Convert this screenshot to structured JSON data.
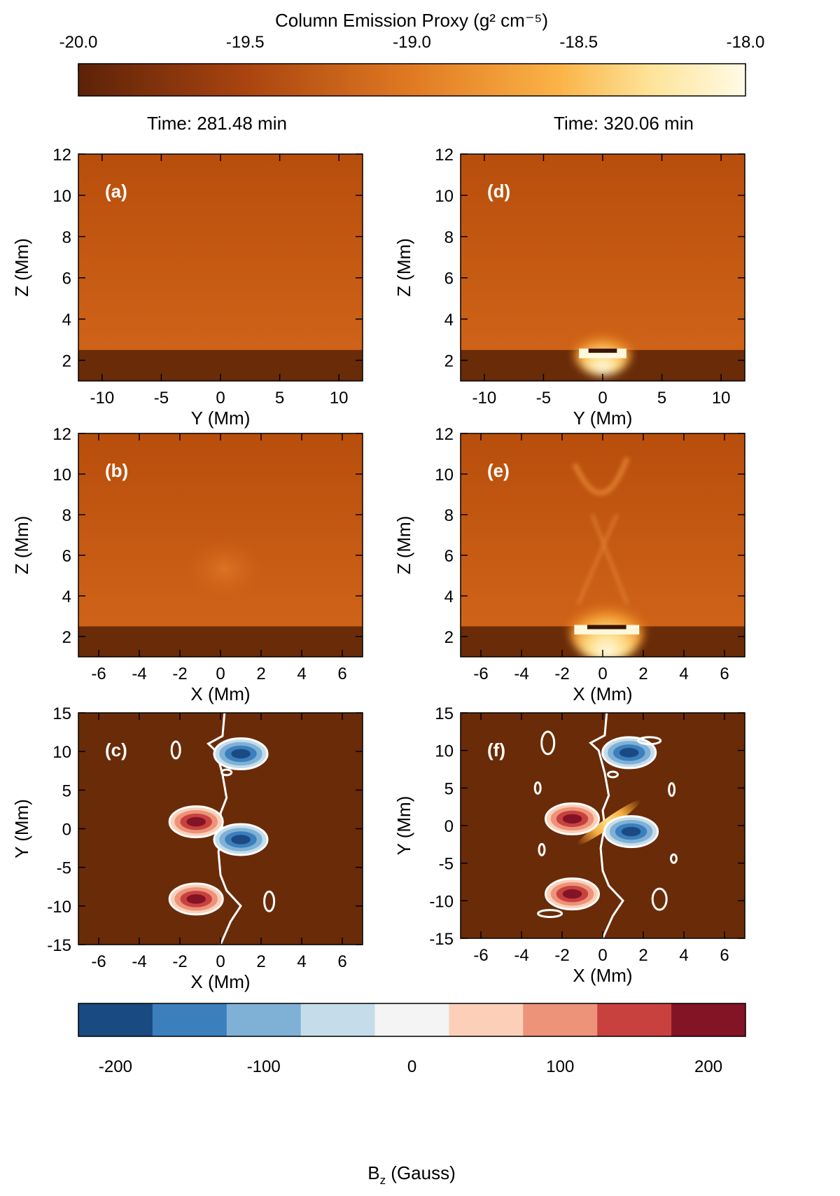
{
  "top_colorbar": {
    "title": "Column Emission Proxy (g² cm⁻⁵)",
    "ticks": [
      "-20.0",
      "-19.5",
      "-19.0",
      "-18.5",
      "-18.0"
    ],
    "range": [
      -20.0,
      -18.0
    ]
  },
  "bottom_colorbar": {
    "label": "B_z (Gauss)",
    "label_main": "B",
    "label_sub": "z",
    "label_unit": " (Gauss)",
    "ticks": [
      "-200",
      "-100",
      "0",
      "100",
      "200"
    ],
    "levels": [
      -200,
      -150,
      -100,
      -50,
      0,
      50,
      100,
      150,
      200
    ],
    "colors": [
      "#1a4a82",
      "#3b7fbd",
      "#7fb1d6",
      "#c5dcea",
      "#f4f4f4",
      "#fbcfb8",
      "#ec9379",
      "#c9413f",
      "#831426"
    ]
  },
  "time_labels": [
    "Time: 281.48 min",
    "Time: 320.06 min"
  ],
  "colors": {
    "background_emission": "#c85a10",
    "chromosphere": "#6a2b08",
    "bright_core": "#fff8dc"
  },
  "chart_data": [
    {
      "panel": "(a)",
      "type": "heatmap",
      "time": "Time: 281.48 min",
      "xlabel": "Y (Mm)",
      "ylabel": "Z (Mm)",
      "xlim": [
        -12,
        12
      ],
      "ylim": [
        1,
        12
      ],
      "xticks": [
        -10,
        -5,
        0,
        5,
        10
      ],
      "yticks": [
        2,
        4,
        6,
        8,
        10,
        12
      ],
      "chromosphere_top": 2.5,
      "brightening": null
    },
    {
      "panel": "(b)",
      "type": "heatmap",
      "time": "Time: 281.48 min",
      "xlabel": "X (Mm)",
      "ylabel": "Z (Mm)",
      "xlim": [
        -7,
        7
      ],
      "ylim": [
        1,
        12
      ],
      "xticks": [
        -6,
        -4,
        -2,
        0,
        2,
        4,
        6
      ],
      "yticks": [
        2,
        4,
        6,
        8,
        10,
        12
      ],
      "chromosphere_top": 2.5,
      "brightening": null
    },
    {
      "panel": "(c)",
      "type": "heatmap",
      "time": "Time: 281.48 min",
      "xlabel": "X (Mm)",
      "ylabel": "Y (Mm)",
      "xlim": [
        -7,
        7
      ],
      "ylim": [
        -15,
        15
      ],
      "xticks": [
        -6,
        -4,
        -2,
        0,
        2,
        4,
        6
      ],
      "yticks": [
        -15,
        -10,
        -5,
        0,
        5,
        10,
        15
      ],
      "bz_polarities": [
        {
          "sign": "negative",
          "x": 1.0,
          "y": 9.7
        },
        {
          "sign": "positive",
          "x": -1.2,
          "y": 0.9
        },
        {
          "sign": "negative",
          "x": 1.0,
          "y": -1.4
        },
        {
          "sign": "positive",
          "x": -1.2,
          "y": -9.1
        }
      ]
    },
    {
      "panel": "(d)",
      "type": "heatmap",
      "time": "Time: 320.06 min",
      "xlabel": "Y (Mm)",
      "ylabel": "Z (Mm)",
      "xlim": [
        -12,
        12
      ],
      "ylim": [
        1,
        12
      ],
      "xticks": [
        -10,
        -5,
        0,
        5,
        10
      ],
      "yticks": [
        2,
        4,
        6,
        8,
        10,
        12
      ],
      "chromosphere_top": 2.5,
      "brightening": {
        "center": 0,
        "width": 4,
        "top": 3.4
      }
    },
    {
      "panel": "(e)",
      "type": "heatmap",
      "time": "Time: 320.06 min",
      "xlabel": "X (Mm)",
      "ylabel": "Z (Mm)",
      "xlim": [
        -7,
        7
      ],
      "ylim": [
        1,
        12
      ],
      "xticks": [
        -6,
        -4,
        -2,
        0,
        2,
        4,
        6
      ],
      "yticks": [
        2,
        4,
        6,
        8,
        10,
        12
      ],
      "chromosphere_top": 2.5,
      "brightening": {
        "center": 0.2,
        "width": 3.2,
        "top": 3.9
      }
    },
    {
      "panel": "(f)",
      "type": "heatmap",
      "time": "Time: 320.06 min",
      "xlabel": "X (Mm)",
      "ylabel": "Y (Mm)",
      "xlim": [
        -7,
        7
      ],
      "ylim": [
        -15,
        15
      ],
      "xticks": [
        -6,
        -4,
        -2,
        0,
        2,
        4,
        6
      ],
      "yticks": [
        -15,
        -10,
        -5,
        0,
        5,
        10,
        15
      ],
      "bz_polarities": [
        {
          "sign": "negative",
          "x": 1.3,
          "y": 9.7
        },
        {
          "sign": "positive",
          "x": -1.5,
          "y": 0.9
        },
        {
          "sign": "negative",
          "x": 1.4,
          "y": -0.8
        },
        {
          "sign": "positive",
          "x": -1.5,
          "y": -9.1
        }
      ],
      "current_sheet": {
        "x": 0.3,
        "y": 0.4,
        "angle_deg": 35
      }
    }
  ]
}
